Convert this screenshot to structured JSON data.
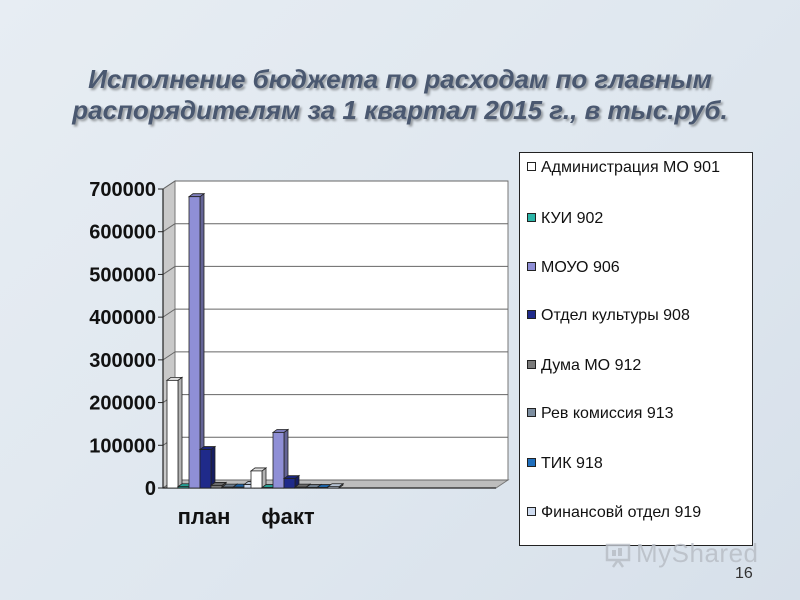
{
  "slide": {
    "title_lines": [
      "Исполнение бюджета по расходам по главным",
      "распорядителям за 1 квартал 2015 г., в тыс.руб."
    ],
    "page_number": "16",
    "watermark": "MyShared"
  },
  "chart_data": {
    "type": "bar",
    "title": "",
    "xlabel": "",
    "ylabel": "",
    "categories": [
      "план",
      "факт"
    ],
    "ylim": [
      0,
      700000
    ],
    "yticks": [
      0,
      100000,
      200000,
      300000,
      400000,
      500000,
      600000,
      700000
    ],
    "ytick_labels": [
      "0",
      "100000",
      "200000",
      "300000",
      "400000",
      "500000",
      "600000",
      "700000"
    ],
    "grid": true,
    "legend_position": "right",
    "series": [
      {
        "name": "Администрация МО 901",
        "color": "#ffffff",
        "values": [
          252000,
          40000
        ]
      },
      {
        "name": "КУИ 902",
        "color": "#2bb5a8",
        "values": [
          3000,
          1000
        ]
      },
      {
        "name": "МОУО 906",
        "color": "#8f8fd6",
        "values": [
          682000,
          130000
        ]
      },
      {
        "name": "Отдел культуры 908",
        "color": "#1f2a8a",
        "values": [
          90000,
          22000
        ]
      },
      {
        "name": "Дума МО 912",
        "color": "#7a7a7a",
        "values": [
          6000,
          2000
        ]
      },
      {
        "name": "Рев комиссия 913",
        "color": "#7d8ea0",
        "values": [
          2000,
          1000
        ]
      },
      {
        "name": "ТИК 918",
        "color": "#1f6fbd",
        "values": [
          2000,
          1000
        ]
      },
      {
        "name": "Финансовй отдел 919",
        "color": "#cfdcf0",
        "values": [
          8000,
          3000
        ]
      }
    ]
  }
}
